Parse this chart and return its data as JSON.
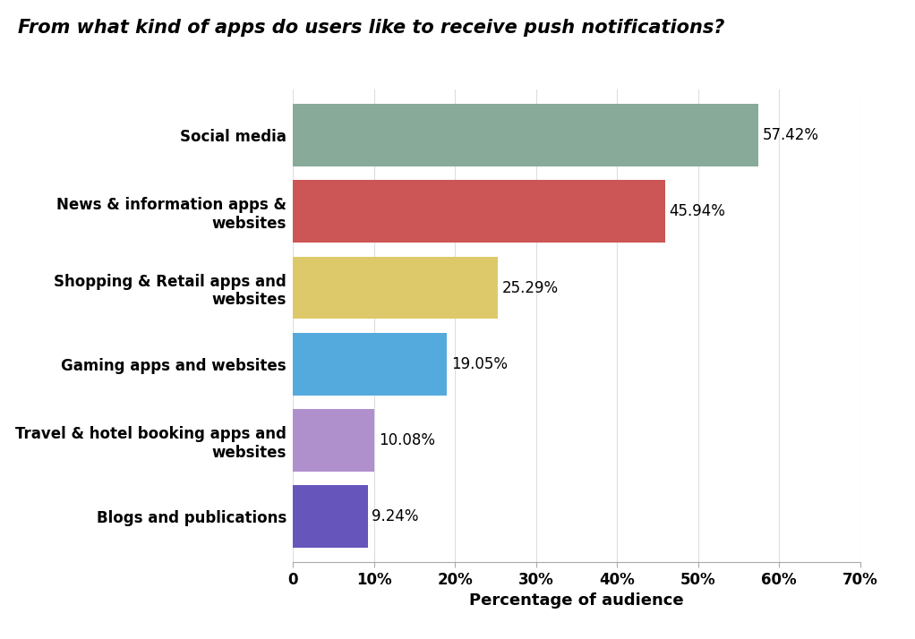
{
  "title": "From what kind of apps do users like to receive push notifications?",
  "categories": [
    "Blogs and publications",
    "Travel & hotel booking apps and\nwebsites",
    "Gaming apps and websites",
    "Shopping & Retail apps and\nwebsites",
    "News & information apps &\nwebsites",
    "Social media"
  ],
  "values": [
    9.24,
    10.08,
    19.05,
    25.29,
    45.94,
    57.42
  ],
  "labels": [
    "9.24%",
    "10.08%",
    "19.05%",
    "25.29%",
    "45.94%",
    "57.42%"
  ],
  "bar_colors": [
    "#6655bb",
    "#b090cc",
    "#55aadd",
    "#ddc96a",
    "#cc5555",
    "#88aa99"
  ],
  "xlabel": "Percentage of audience",
  "xlim": [
    0,
    70
  ],
  "xticks": [
    0,
    10,
    20,
    30,
    40,
    50,
    60,
    70
  ],
  "xtick_labels": [
    "0",
    "10%",
    "20%",
    "30%",
    "40%",
    "50%",
    "60%",
    "70%"
  ],
  "title_fontsize": 15,
  "label_fontsize": 12,
  "tick_fontsize": 12,
  "xlabel_fontsize": 13,
  "background_color": "#ffffff"
}
